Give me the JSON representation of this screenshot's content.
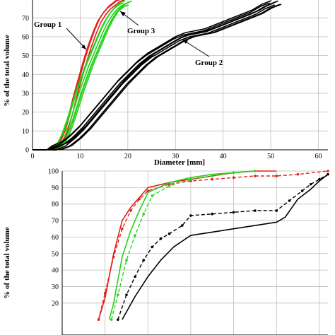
{
  "chart_data": [
    {
      "type": "line",
      "panel": "top",
      "xlabel": "Diameter [mm]",
      "ylabel": "% of the total volume",
      "xlim": [
        0,
        62
      ],
      "ylim": [
        0,
        80
      ],
      "xticks": [
        0,
        10,
        20,
        30,
        40,
        50,
        60
      ],
      "yticks": [
        0,
        10,
        20,
        30,
        40,
        50,
        60,
        70
      ],
      "grid": true,
      "annotations": [
        "Group 1",
        "Group 3",
        "Group 2"
      ],
      "series": [
        {
          "name": "Group 1",
          "color": "#e0201b",
          "count": 3,
          "x": [
            0,
            3,
            5,
            6,
            7,
            8,
            9,
            10,
            11,
            12,
            13,
            14,
            15,
            16,
            17,
            18,
            19
          ],
          "y": [
            0,
            0,
            1,
            4,
            10,
            19,
            29,
            38,
            47,
            55,
            62,
            68,
            72,
            75,
            77,
            79,
            80
          ]
        },
        {
          "name": "Group 3",
          "color": "#22d318",
          "count": 6,
          "x": [
            0,
            3,
            5,
            6,
            7,
            8,
            9,
            10,
            11,
            12,
            13,
            14,
            15,
            16,
            17,
            18,
            19,
            20
          ],
          "y": [
            0,
            0,
            1,
            3,
            8,
            15,
            23,
            31,
            38,
            45,
            51,
            57,
            63,
            68,
            72,
            75,
            77,
            78
          ]
        },
        {
          "name": "Group 2",
          "color": "#000000",
          "count": 8,
          "x": [
            0,
            3,
            5,
            7,
            9,
            11,
            13,
            15,
            17,
            19,
            21,
            23,
            25,
            27,
            29,
            31,
            33,
            35,
            37,
            39,
            41,
            43,
            45,
            47,
            49,
            51
          ],
          "y": [
            0,
            0,
            1,
            3,
            7,
            12,
            18,
            24,
            30,
            36,
            41,
            46,
            50,
            53,
            56,
            59,
            61,
            62,
            63,
            65,
            67,
            69,
            71,
            73,
            76,
            78
          ]
        }
      ]
    },
    {
      "type": "line",
      "panel": "bottom",
      "ylabel": "% of the total volume",
      "xlim": [
        0,
        62
      ],
      "ylim": [
        10,
        100
      ],
      "yticks": [
        20,
        30,
        40,
        50,
        60,
        70,
        80,
        90,
        100
      ],
      "grid": true,
      "series": [
        {
          "color": "#e0201b",
          "style": "solid",
          "x": [
            8.5,
            10,
            12,
            14,
            16,
            18,
            20,
            25,
            30,
            35,
            40,
            45,
            50
          ],
          "y": [
            10,
            23,
            50,
            70,
            78,
            84,
            90,
            93,
            95,
            97,
            99,
            100,
            100
          ]
        },
        {
          "color": "#e0201b",
          "style": "dashed",
          "x": [
            8.5,
            10,
            12,
            14,
            16,
            18,
            20,
            25,
            30,
            35,
            40,
            45,
            50,
            55,
            62
          ],
          "y": [
            10,
            26,
            48,
            65,
            76,
            83,
            88,
            92,
            94,
            95,
            96,
            97,
            97,
            98,
            100
          ]
        },
        {
          "color": "#22d318",
          "style": "solid",
          "x": [
            11,
            12,
            14,
            16,
            18,
            20,
            25,
            30,
            35,
            40,
            45
          ],
          "y": [
            10,
            20,
            48,
            64,
            76,
            87,
            93,
            96,
            98,
            99,
            100
          ]
        },
        {
          "color": "#22d318",
          "style": "dashed",
          "x": [
            11.5,
            13,
            15,
            17,
            19,
            21,
            25,
            30,
            35,
            40,
            45
          ],
          "y": [
            10,
            25,
            46,
            61,
            74,
            85,
            91,
            95,
            97,
            99,
            100
          ]
        },
        {
          "color": "#000000",
          "style": "solid",
          "x": [
            14,
            17,
            20,
            23,
            26,
            30,
            35,
            40,
            45,
            50,
            52,
            55,
            58,
            60,
            62
          ],
          "y": [
            10,
            24,
            36,
            46,
            54,
            61,
            63,
            65,
            67,
            69,
            72,
            83,
            89,
            94,
            98
          ]
        },
        {
          "color": "#000000",
          "style": "dashed",
          "x": [
            13,
            15,
            17,
            19,
            21,
            23,
            25,
            28,
            30,
            35,
            40,
            45,
            50,
            53,
            56,
            58,
            60,
            62
          ],
          "y": [
            10,
            25,
            36,
            46,
            54,
            59,
            62,
            67,
            73,
            74,
            75,
            76,
            76,
            82,
            88,
            92,
            95,
            98
          ]
        }
      ]
    }
  ]
}
